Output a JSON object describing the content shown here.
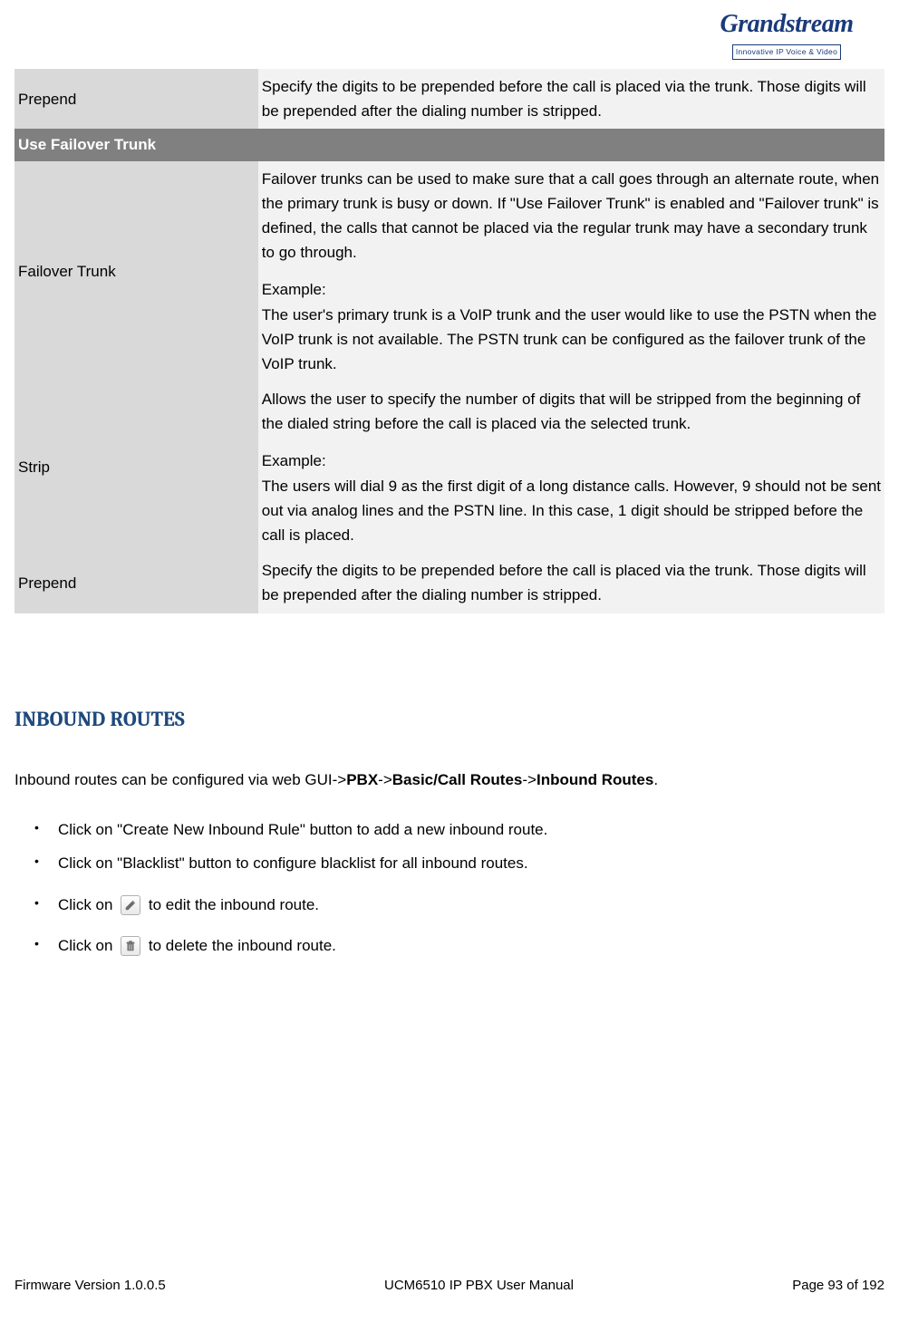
{
  "logo": {
    "main_text": "Grandstream",
    "tagline": "Innovative IP Voice & Video"
  },
  "table": {
    "rows": [
      {
        "type": "entry",
        "term": "Prepend",
        "definition_parts": [
          "Specify the digits to be prepended before the call is placed via the trunk. Those digits will be prepended after the dialing number is stripped."
        ]
      },
      {
        "type": "section",
        "label": "Use Failover Trunk"
      },
      {
        "type": "entry",
        "term": "Failover Trunk",
        "definition_parts": [
          "Failover trunks can be used to make sure that a call goes through an alternate route, when the primary trunk is busy or down. If \"Use Failover Trunk\" is enabled and \"Failover trunk\" is defined, the calls that cannot be placed via the regular trunk may have a secondary trunk to go through.",
          "Example:\nThe user's primary trunk is a VoIP trunk and the user would like to use the PSTN when the VoIP trunk is not available. The PSTN trunk can be configured as the failover trunk of the VoIP trunk."
        ]
      },
      {
        "type": "entry",
        "term": "Strip",
        "definition_parts": [
          "Allows the user to specify the number of digits that will be stripped from the beginning of the dialed string before the call is placed via the selected trunk.",
          "Example:\nThe users will dial 9 as the first digit of a long distance calls. However, 9 should not be sent out via analog lines and the PSTN line. In this case, 1 digit should be stripped before the call is placed."
        ]
      },
      {
        "type": "entry",
        "term": "Prepend",
        "definition_parts": [
          "Specify the digits to be prepended before the call is placed via the trunk. Those digits will be prepended after the dialing number is stripped."
        ]
      }
    ]
  },
  "section": {
    "heading": "INBOUND ROUTES",
    "intro_parts": [
      {
        "text": "Inbound routes can be configured via web GUI->",
        "bold": false
      },
      {
        "text": "PBX",
        "bold": true
      },
      {
        "text": "->",
        "bold": false
      },
      {
        "text": "Basic/Call Routes",
        "bold": true
      },
      {
        "text": "->",
        "bold": false
      },
      {
        "text": "Inbound Routes",
        "bold": true
      },
      {
        "text": ".",
        "bold": false
      }
    ],
    "bullets": [
      {
        "kind": "plain",
        "text": "Click on \"Create New Inbound Rule\" button to add a new inbound route."
      },
      {
        "kind": "plain",
        "text": "Click on \"Blacklist\" button to configure blacklist for all inbound routes."
      },
      {
        "kind": "icon",
        "prefix": "Click on ",
        "icon": "pencil-icon",
        "suffix": " to edit the inbound route."
      },
      {
        "kind": "icon",
        "prefix": "Click on ",
        "icon": "trash-icon",
        "suffix": " to delete the inbound route."
      }
    ]
  },
  "footer": {
    "left": "Firmware Version 1.0.0.5",
    "center": "UCM6510 IP PBX User Manual",
    "right": "Page 93 of 192"
  },
  "colors": {
    "term_bg": "#d9d9d9",
    "def_bg": "#f2f2f2",
    "section_bg": "#808080",
    "section_fg": "#ffffff",
    "heading_color": "#1f497d",
    "logo_color": "#1a3a7a"
  }
}
